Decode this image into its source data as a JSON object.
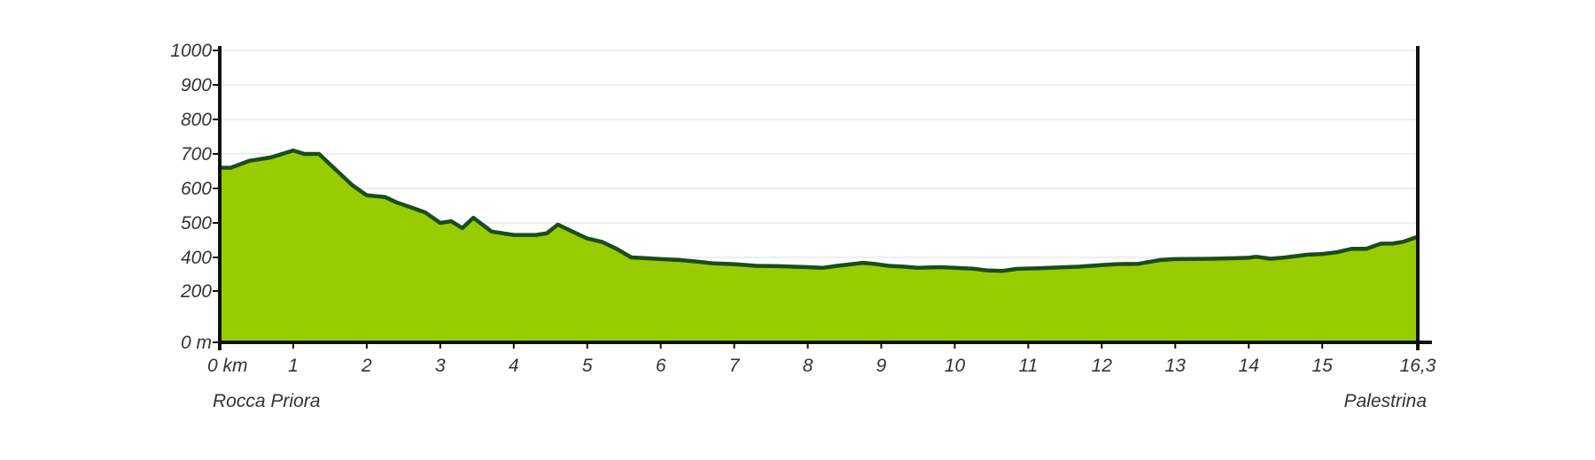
{
  "chart_data": {
    "type": "area",
    "title": "",
    "xlabel": "",
    "ylabel": "",
    "xlim": [
      0,
      16.3
    ],
    "ylim": [
      0,
      1000
    ],
    "x_ticks": [
      {
        "value": 0,
        "label": "0 km"
      },
      {
        "value": 1,
        "label": "1"
      },
      {
        "value": 2,
        "label": "2"
      },
      {
        "value": 3,
        "label": "3"
      },
      {
        "value": 4,
        "label": "4"
      },
      {
        "value": 5,
        "label": "5"
      },
      {
        "value": 6,
        "label": "6"
      },
      {
        "value": 7,
        "label": "7"
      },
      {
        "value": 8,
        "label": "8"
      },
      {
        "value": 9,
        "label": "9"
      },
      {
        "value": 10,
        "label": "10"
      },
      {
        "value": 11,
        "label": "11"
      },
      {
        "value": 12,
        "label": "12"
      },
      {
        "value": 13,
        "label": "13"
      },
      {
        "value": 14,
        "label": "14"
      },
      {
        "value": 15,
        "label": "15"
      },
      {
        "value": 16.3,
        "label": "16,3"
      }
    ],
    "y_ticks": [
      {
        "value": 0,
        "label": "0 m"
      },
      {
        "value": 200,
        "label": "200"
      },
      {
        "value": 400,
        "label": "400"
      },
      {
        "value": 500,
        "label": "500"
      },
      {
        "value": 600,
        "label": "600"
      },
      {
        "value": 700,
        "label": "700"
      },
      {
        "value": 800,
        "label": "800"
      },
      {
        "value": 900,
        "label": "900"
      },
      {
        "value": 1000,
        "label": "1000"
      }
    ],
    "grid": true,
    "start_label": "Rocca Priora",
    "end_label": "Palestrina",
    "fill_color": "#99cc00",
    "line_color": "#1a4d1a",
    "series": [
      {
        "x": [
          0,
          0.15,
          0.4,
          0.7,
          1.0,
          1.15,
          1.35,
          1.5,
          1.8,
          2.0,
          2.25,
          2.4,
          2.6,
          2.8,
          3.0,
          3.15,
          3.3,
          3.45,
          3.7,
          4.0,
          4.3,
          4.45,
          4.6,
          4.8,
          5.0,
          5.2,
          5.4,
          5.6,
          5.8,
          6.0,
          6.25,
          6.5,
          6.7,
          7.0,
          7.3,
          7.6,
          8.0,
          8.2,
          8.4,
          8.6,
          8.75,
          8.9,
          9.1,
          9.3,
          9.5,
          9.8,
          10.0,
          10.25,
          10.45,
          10.65,
          10.85,
          11.1,
          11.4,
          11.7,
          12.0,
          12.2,
          12.5,
          12.8,
          13.0,
          13.5,
          14.0,
          14.1,
          14.3,
          14.5,
          14.8,
          15.0,
          15.2,
          15.4,
          15.6,
          15.8,
          15.95,
          16.1,
          16.3
        ],
        "y": [
          660,
          660,
          680,
          690,
          710,
          700,
          700,
          670,
          610,
          580,
          575,
          560,
          545,
          530,
          500,
          505,
          485,
          515,
          475,
          465,
          465,
          470,
          495,
          475,
          455,
          445,
          425,
          400,
          395,
          390,
          385,
          375,
          365,
          360,
          350,
          348,
          342,
          338,
          350,
          360,
          368,
          362,
          350,
          345,
          338,
          342,
          338,
          333,
          322,
          320,
          332,
          335,
          340,
          345,
          355,
          360,
          362,
          385,
          390,
          392,
          398,
          402,
          392,
          400,
          408,
          410,
          415,
          425,
          425,
          440,
          440,
          445,
          460
        ]
      }
    ]
  }
}
